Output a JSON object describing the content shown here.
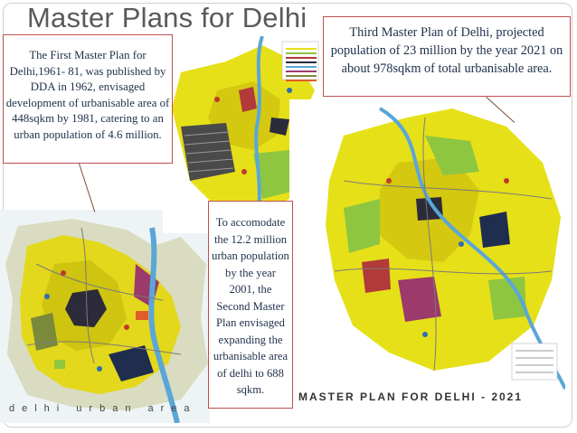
{
  "slide": {
    "title": "Master Plans for Delhi"
  },
  "callouts": {
    "first_plan": "The First Master Plan for Delhi,1961- 81, was published by DDA in 1962, envisaged development of urbanisable area of 448sqkm by 1981, catering to an urban population of 4.6 million.",
    "second_plan": "To accomodate the 12.2 million urban population by the year 2001, the Second Master Plan envisaged expanding the urbanisable area of delhi to 688 sqkm.",
    "third_plan": "Third Master Plan of Delhi, projected population of 23 million by the year 2021 on about 978sqkm of total urbanisable area."
  },
  "maps": {
    "first_caption": "delhi urban area",
    "third_caption": "MASTER PLAN FOR DELHI - 2021"
  },
  "colors": {
    "title": "#5a5a5a",
    "callout_border": "#c0504d",
    "callout_text": "#1e2f4a",
    "map_yellow": "#e6e019",
    "map_green": "#8ec640",
    "map_river": "#5aa6d8"
  }
}
